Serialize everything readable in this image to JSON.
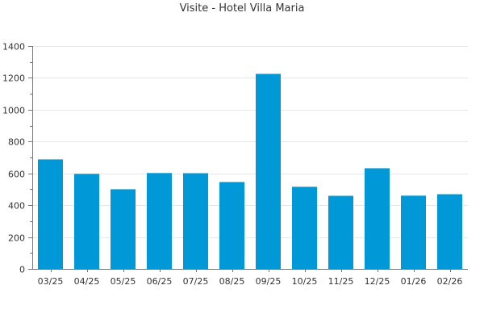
{
  "chart_data": {
    "type": "bar",
    "title": "Visite - Hotel Villa Maria",
    "xlabel": "",
    "ylabel": "",
    "categories": [
      "03/25",
      "04/25",
      "05/25",
      "06/25",
      "07/25",
      "08/25",
      "09/25",
      "10/25",
      "11/25",
      "12/25",
      "01/26",
      "02/26"
    ],
    "values": [
      688,
      597,
      500,
      602,
      601,
      546,
      1225,
      516,
      459,
      632,
      460,
      469
    ],
    "ylim": [
      0,
      1400
    ],
    "yticks": [
      0,
      200,
      400,
      600,
      800,
      1000,
      1200,
      1400
    ],
    "grid": true,
    "legend": "none",
    "colors": {
      "bar": "#0098d6",
      "grid": "#e6e6e6",
      "axis": "#777777",
      "text": "#333333"
    }
  }
}
